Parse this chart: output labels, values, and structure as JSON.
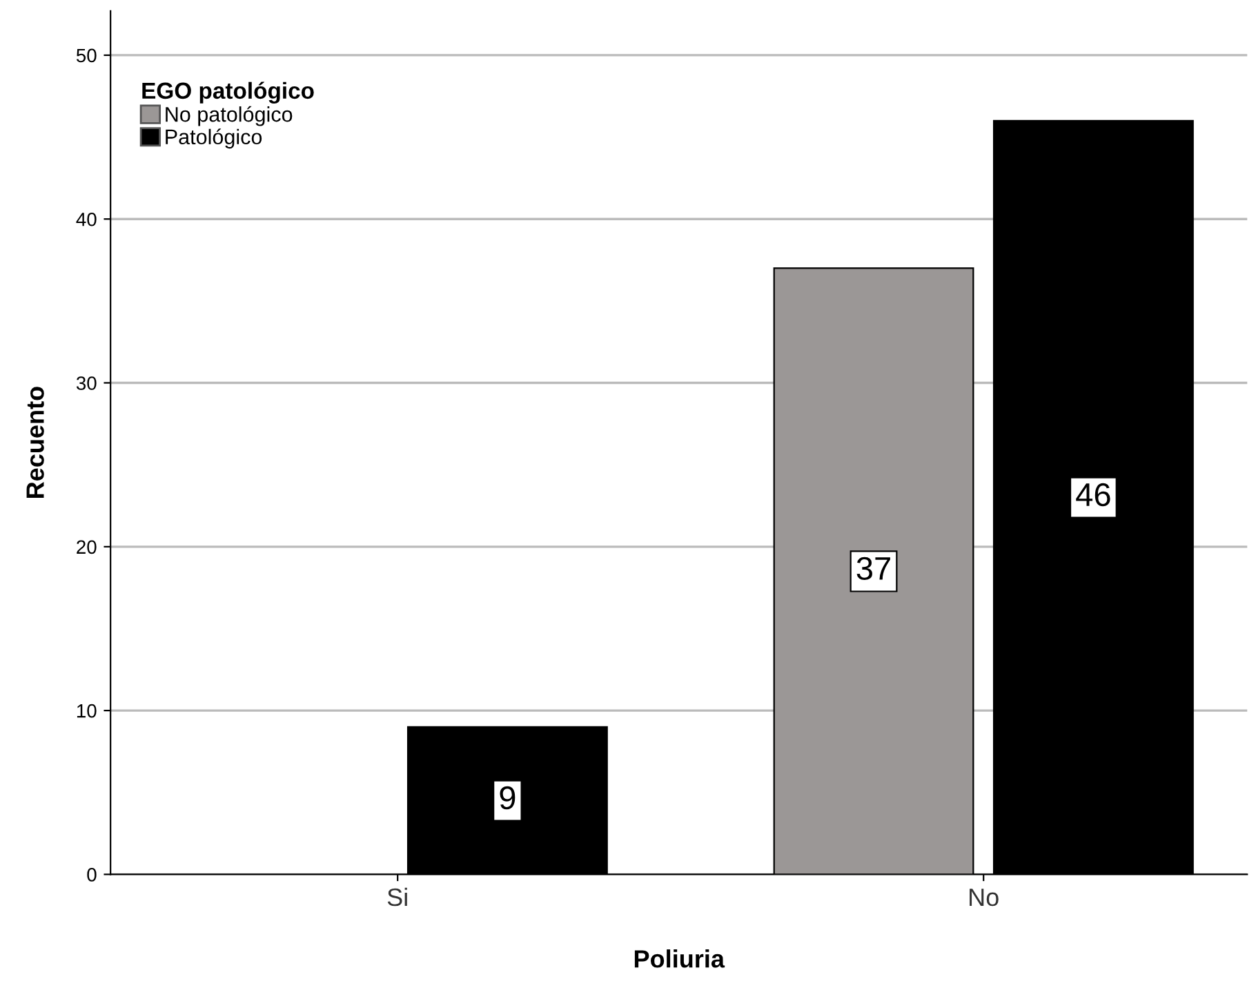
{
  "chart_data": {
    "type": "bar",
    "xlabel": "Poliuria",
    "ylabel": "Recuento",
    "legend_title": "EGO patológico",
    "categories": [
      "Si",
      "No"
    ],
    "series": [
      {
        "name": "No patológico",
        "color": "#9b9796",
        "values": [
          null,
          37
        ],
        "value_labels": [
          null,
          "37"
        ]
      },
      {
        "name": "Patológico",
        "color": "#000000",
        "values": [
          9,
          46
        ],
        "value_labels": [
          "9",
          "46"
        ]
      }
    ],
    "ylim": [
      0,
      52.7
    ],
    "yticks": [
      0,
      10,
      20,
      30,
      40,
      50
    ],
    "grid": "y",
    "legend": "top left"
  }
}
